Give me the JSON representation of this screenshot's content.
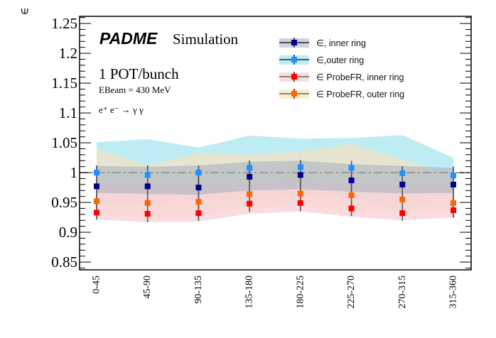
{
  "chart_data": {
    "type": "scatter",
    "title": "",
    "xlabel": "",
    "ylabel": "∈",
    "ylim": [
      0.837,
      1.262
    ],
    "yticks": [
      "0.85",
      "0.9",
      "0.95",
      "1",
      "1.05",
      "1.1",
      "1.15",
      "1.2",
      "1.25"
    ],
    "ytick_values": [
      0.85,
      0.9,
      0.95,
      1.0,
      1.05,
      1.1,
      1.15,
      1.2,
      1.25
    ],
    "categories": [
      "0-45",
      "45-90",
      "90-135",
      "135-180",
      "180-225",
      "225-270",
      "270-315",
      "315-360"
    ],
    "reference_line": {
      "value": 1.0,
      "style": "dash-dot",
      "color": "#999999"
    },
    "grid": false,
    "legend_position": "top-right",
    "annotations": {
      "experiment": "PADME",
      "label": "Simulation",
      "line1": "1 POT/bunch",
      "line2": "EBeam = 430 MeV",
      "process": "e⁺ e⁻ → γ γ"
    },
    "series": [
      {
        "name": "∈, inner ring",
        "marker_color": "#00008b",
        "band_color": "#7a8fa8",
        "values": [
          0.977,
          0.977,
          0.975,
          0.993,
          0.996,
          0.987,
          0.98,
          0.98
        ],
        "errors": [
          0.035,
          0.035,
          0.035,
          0.027,
          0.025,
          0.025,
          0.03,
          0.03
        ],
        "band_low": [
          0.966,
          0.964,
          0.963,
          0.97,
          0.972,
          0.968,
          0.965,
          0.966
        ],
        "band_high": [
          1.011,
          1.01,
          1.012,
          1.018,
          1.02,
          1.014,
          1.011,
          1.008
        ]
      },
      {
        "name": "∈,outer ring",
        "marker_color": "#1e90ff",
        "band_color": "#7fd8e8",
        "values": [
          1.0,
          0.996,
          1.0,
          1.008,
          1.009,
          1.008,
          0.999,
          0.995
        ],
        "errors": [
          0.012,
          0.012,
          0.012,
          0.012,
          0.012,
          0.012,
          0.012,
          0.012
        ],
        "band_low": [
          0.95,
          0.945,
          0.958,
          0.955,
          0.96,
          0.958,
          0.935,
          0.965
        ],
        "band_high": [
          1.051,
          1.056,
          1.042,
          1.062,
          1.057,
          1.058,
          1.063,
          1.025
        ]
      },
      {
        "name": "∈ ProbeFR, inner ring",
        "marker_color": "#ff0000",
        "band_color": "#f4b8c0",
        "values": [
          0.933,
          0.931,
          0.932,
          0.948,
          0.949,
          0.94,
          0.932,
          0.937
        ],
        "errors": [
          0.012,
          0.014,
          0.013,
          0.012,
          0.012,
          0.013,
          0.013,
          0.012
        ],
        "band_low": [
          0.921,
          0.917,
          0.918,
          0.931,
          0.935,
          0.926,
          0.92,
          0.925
        ],
        "band_high": [
          0.982,
          0.98,
          0.98,
          0.984,
          0.986,
          0.982,
          0.98,
          0.978
        ]
      },
      {
        "name": "∈ ProbeFR, outer ring",
        "marker_color": "#ff6600",
        "band_color": "#f7cf90",
        "values": [
          0.952,
          0.949,
          0.951,
          0.964,
          0.965,
          0.962,
          0.955,
          0.949
        ],
        "errors": [
          0.03,
          0.03,
          0.03,
          0.03,
          0.03,
          0.03,
          0.03,
          0.025
        ],
        "band_low": [
          0.93,
          0.928,
          0.929,
          0.942,
          0.944,
          0.938,
          0.933,
          0.935
        ],
        "band_high": [
          1.04,
          1.012,
          1.033,
          1.03,
          1.035,
          1.048,
          1.022,
          0.995
        ]
      }
    ]
  }
}
